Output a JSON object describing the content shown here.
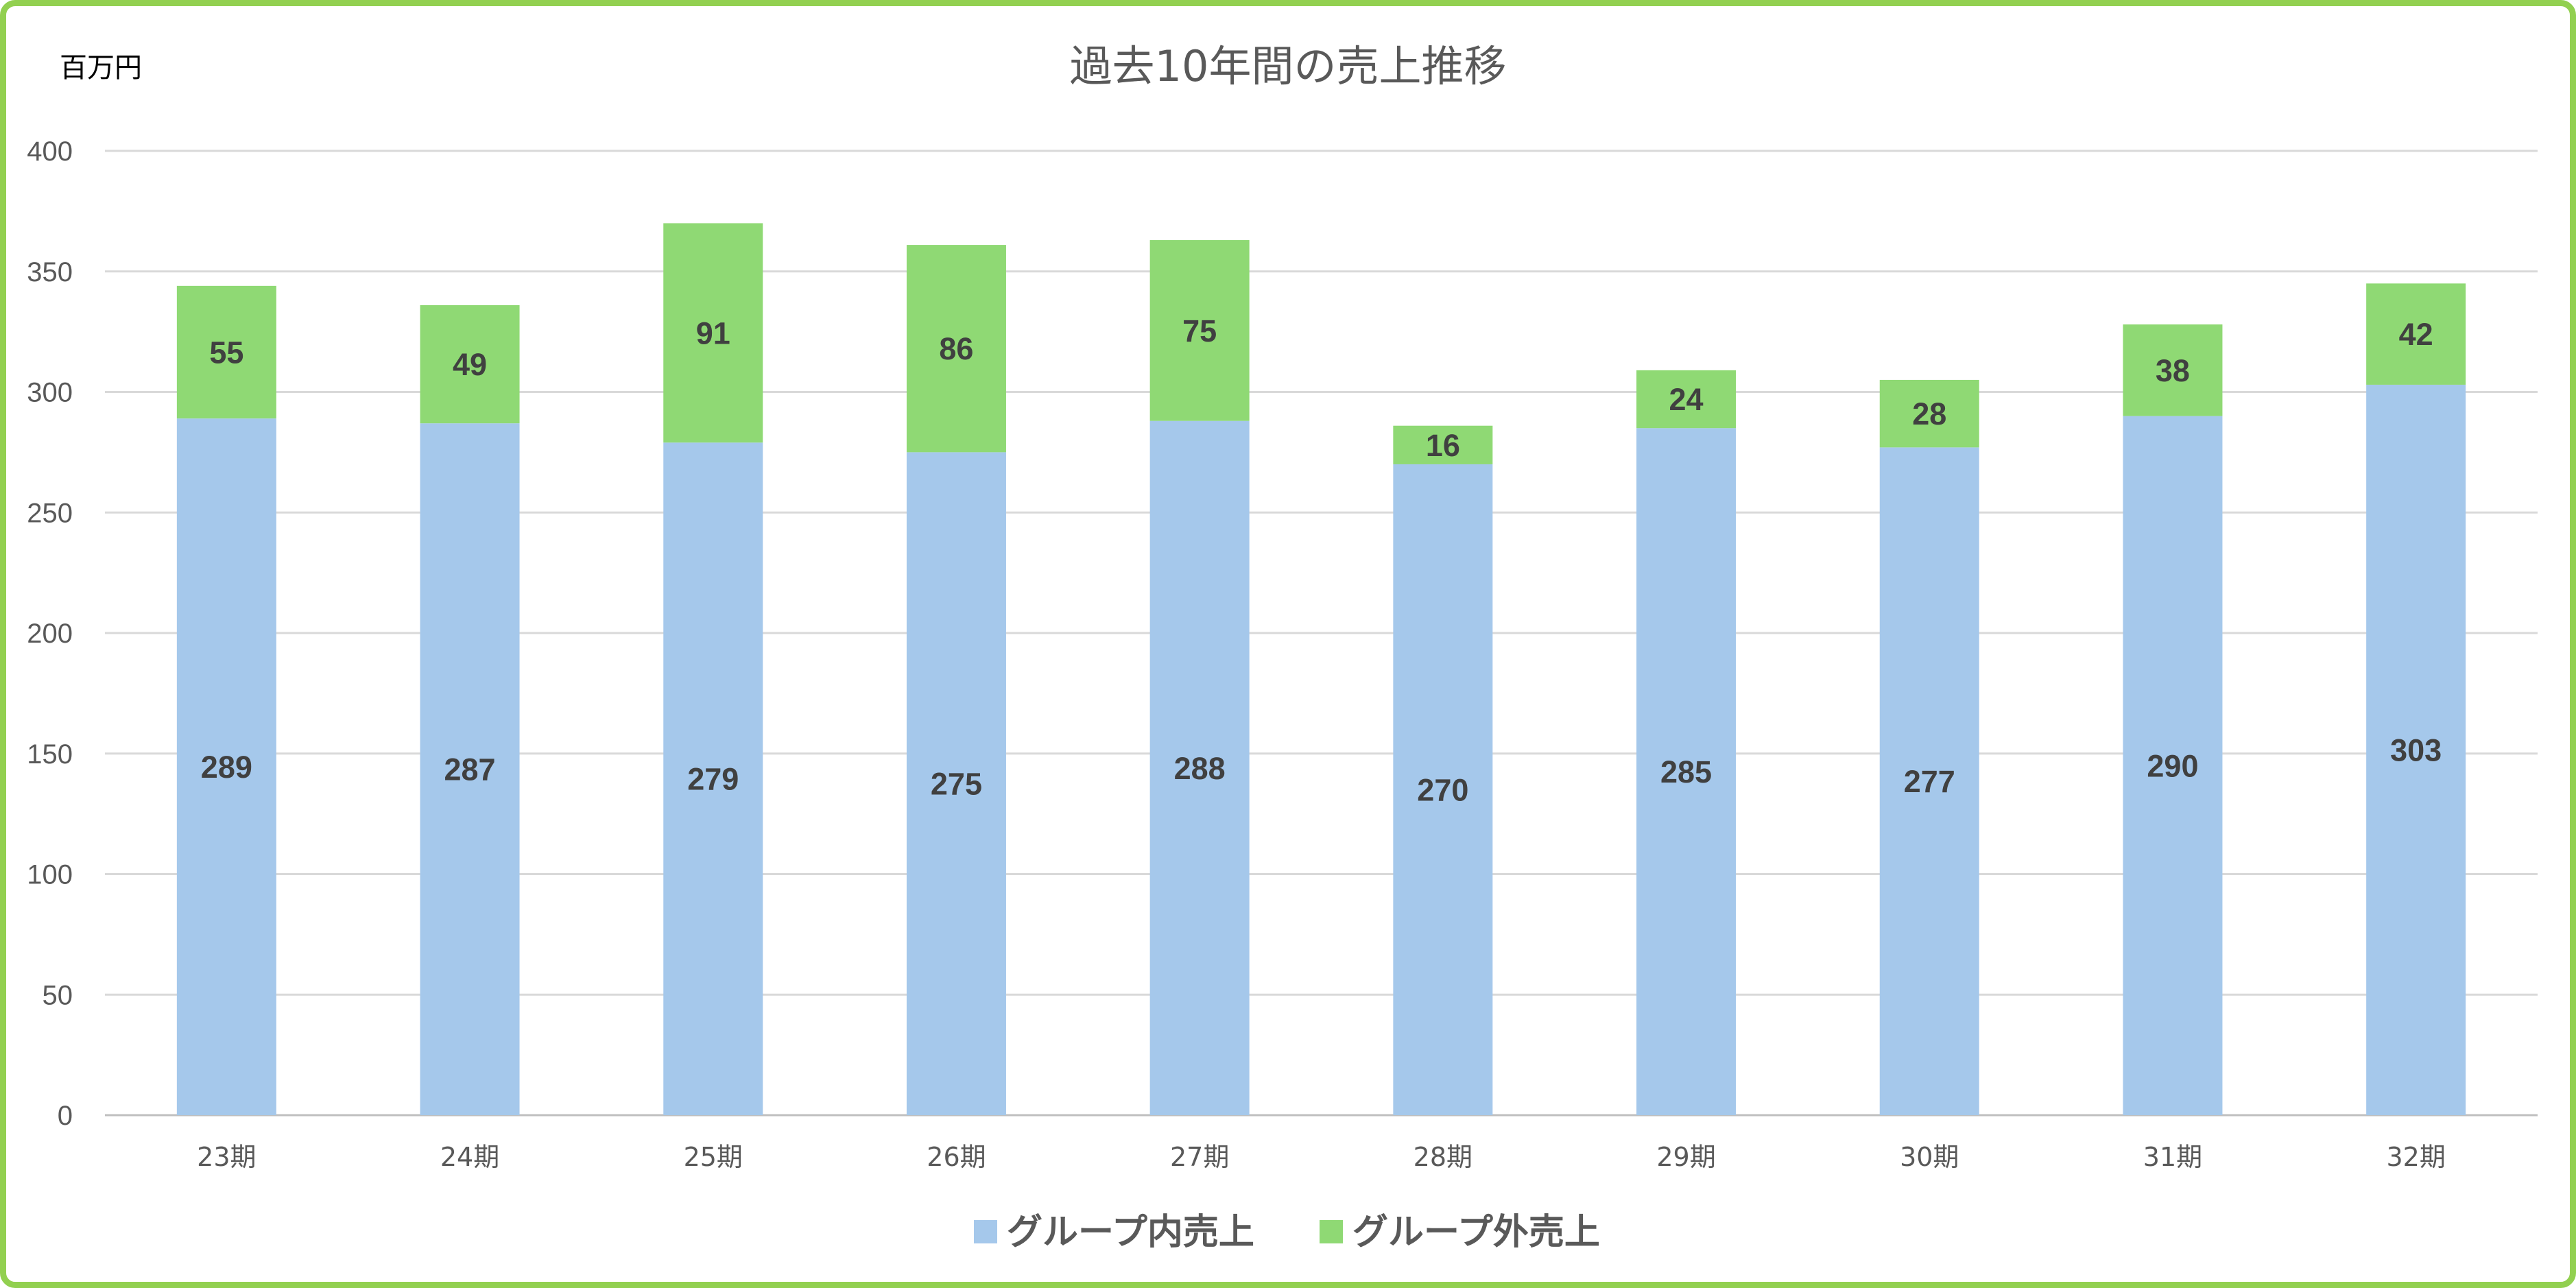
{
  "chart_data": {
    "type": "bar",
    "stacked": true,
    "title": "過去10年間の売上推移",
    "ylabel": "百万円",
    "xlabel": "",
    "ylim": [
      0,
      400
    ],
    "yticks": [
      0,
      50,
      100,
      150,
      200,
      250,
      300,
      350,
      400
    ],
    "grid": true,
    "legend_position": "bottom",
    "categories": [
      "23期",
      "24期",
      "25期",
      "26期",
      "27期",
      "28期",
      "29期",
      "30期",
      "31期",
      "32期"
    ],
    "series": [
      {
        "name": "グループ内売上",
        "color": "#a5c8eb",
        "values": [
          289,
          287,
          279,
          275,
          288,
          270,
          285,
          277,
          290,
          303
        ]
      },
      {
        "name": "グループ外売上",
        "color": "#8fd974",
        "values": [
          55,
          49,
          91,
          86,
          75,
          16,
          24,
          28,
          38,
          42
        ]
      }
    ]
  }
}
